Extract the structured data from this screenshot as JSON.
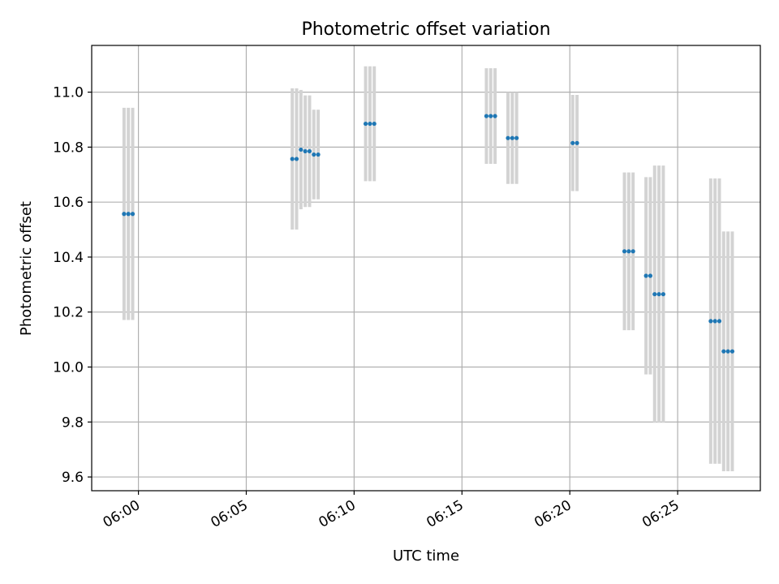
{
  "chart_data": {
    "type": "scatter",
    "title": "Photometric offset variation",
    "xlabel": "UTC time",
    "ylabel": "Photometric offset",
    "x_ticks": [
      "06:00",
      "06:05",
      "06:10",
      "06:15",
      "06:20",
      "06:25"
    ],
    "y_ticks": [
      "9.6",
      "9.8",
      "10.0",
      "10.2",
      "10.4",
      "10.6",
      "10.8",
      "11.0"
    ],
    "xlim": [
      "05:57:50",
      "06:28:50"
    ],
    "ylim": [
      9.55,
      11.17
    ],
    "grid": true,
    "legend": "none",
    "marker_color": "#1f77b4",
    "errorbar_color": "#d3d3d3",
    "series": [
      {
        "points": [
          {
            "t": "05:59:20",
            "y": 10.557,
            "err": 0.386
          },
          {
            "t": "05:59:32",
            "y": 10.557,
            "err": 0.386
          },
          {
            "t": "05:59:44",
            "y": 10.557,
            "err": 0.386
          },
          {
            "t": "06:07:08",
            "y": 10.757,
            "err": 0.257
          },
          {
            "t": "06:07:20",
            "y": 10.757,
            "err": 0.257
          },
          {
            "t": "06:07:32",
            "y": 10.791,
            "err": 0.217
          },
          {
            "t": "06:07:44",
            "y": 10.785,
            "err": 0.203
          },
          {
            "t": "06:07:56",
            "y": 10.785,
            "err": 0.203
          },
          {
            "t": "06:08:08",
            "y": 10.773,
            "err": 0.163
          },
          {
            "t": "06:08:20",
            "y": 10.773,
            "err": 0.163
          },
          {
            "t": "06:10:32",
            "y": 10.885,
            "err": 0.209
          },
          {
            "t": "06:10:44",
            "y": 10.885,
            "err": 0.209
          },
          {
            "t": "06:10:56",
            "y": 10.885,
            "err": 0.209
          },
          {
            "t": "06:16:08",
            "y": 10.913,
            "err": 0.174
          },
          {
            "t": "06:16:20",
            "y": 10.913,
            "err": 0.174
          },
          {
            "t": "06:16:32",
            "y": 10.913,
            "err": 0.174
          },
          {
            "t": "06:17:08",
            "y": 10.833,
            "err": 0.167
          },
          {
            "t": "06:17:20",
            "y": 10.833,
            "err": 0.167
          },
          {
            "t": "06:17:32",
            "y": 10.833,
            "err": 0.167
          },
          {
            "t": "06:20:08",
            "y": 10.815,
            "err": 0.175
          },
          {
            "t": "06:20:20",
            "y": 10.815,
            "err": 0.175
          },
          {
            "t": "06:22:32",
            "y": 10.421,
            "err": 0.287
          },
          {
            "t": "06:22:44",
            "y": 10.421,
            "err": 0.287
          },
          {
            "t": "06:22:56",
            "y": 10.421,
            "err": 0.287
          },
          {
            "t": "06:23:32",
            "y": 10.332,
            "err": 0.359
          },
          {
            "t": "06:23:44",
            "y": 10.332,
            "err": 0.359
          },
          {
            "t": "06:23:56",
            "y": 10.265,
            "err": 0.468
          },
          {
            "t": "06:24:08",
            "y": 10.265,
            "err": 0.468
          },
          {
            "t": "06:24:20",
            "y": 10.265,
            "err": 0.468
          },
          {
            "t": "06:26:32",
            "y": 10.167,
            "err": 0.519
          },
          {
            "t": "06:26:44",
            "y": 10.167,
            "err": 0.519
          },
          {
            "t": "06:26:56",
            "y": 10.167,
            "err": 0.519
          },
          {
            "t": "06:27:08",
            "y": 10.057,
            "err": 0.436
          },
          {
            "t": "06:27:20",
            "y": 10.057,
            "err": 0.436
          },
          {
            "t": "06:27:32",
            "y": 10.057,
            "err": 0.436
          }
        ]
      }
    ]
  }
}
